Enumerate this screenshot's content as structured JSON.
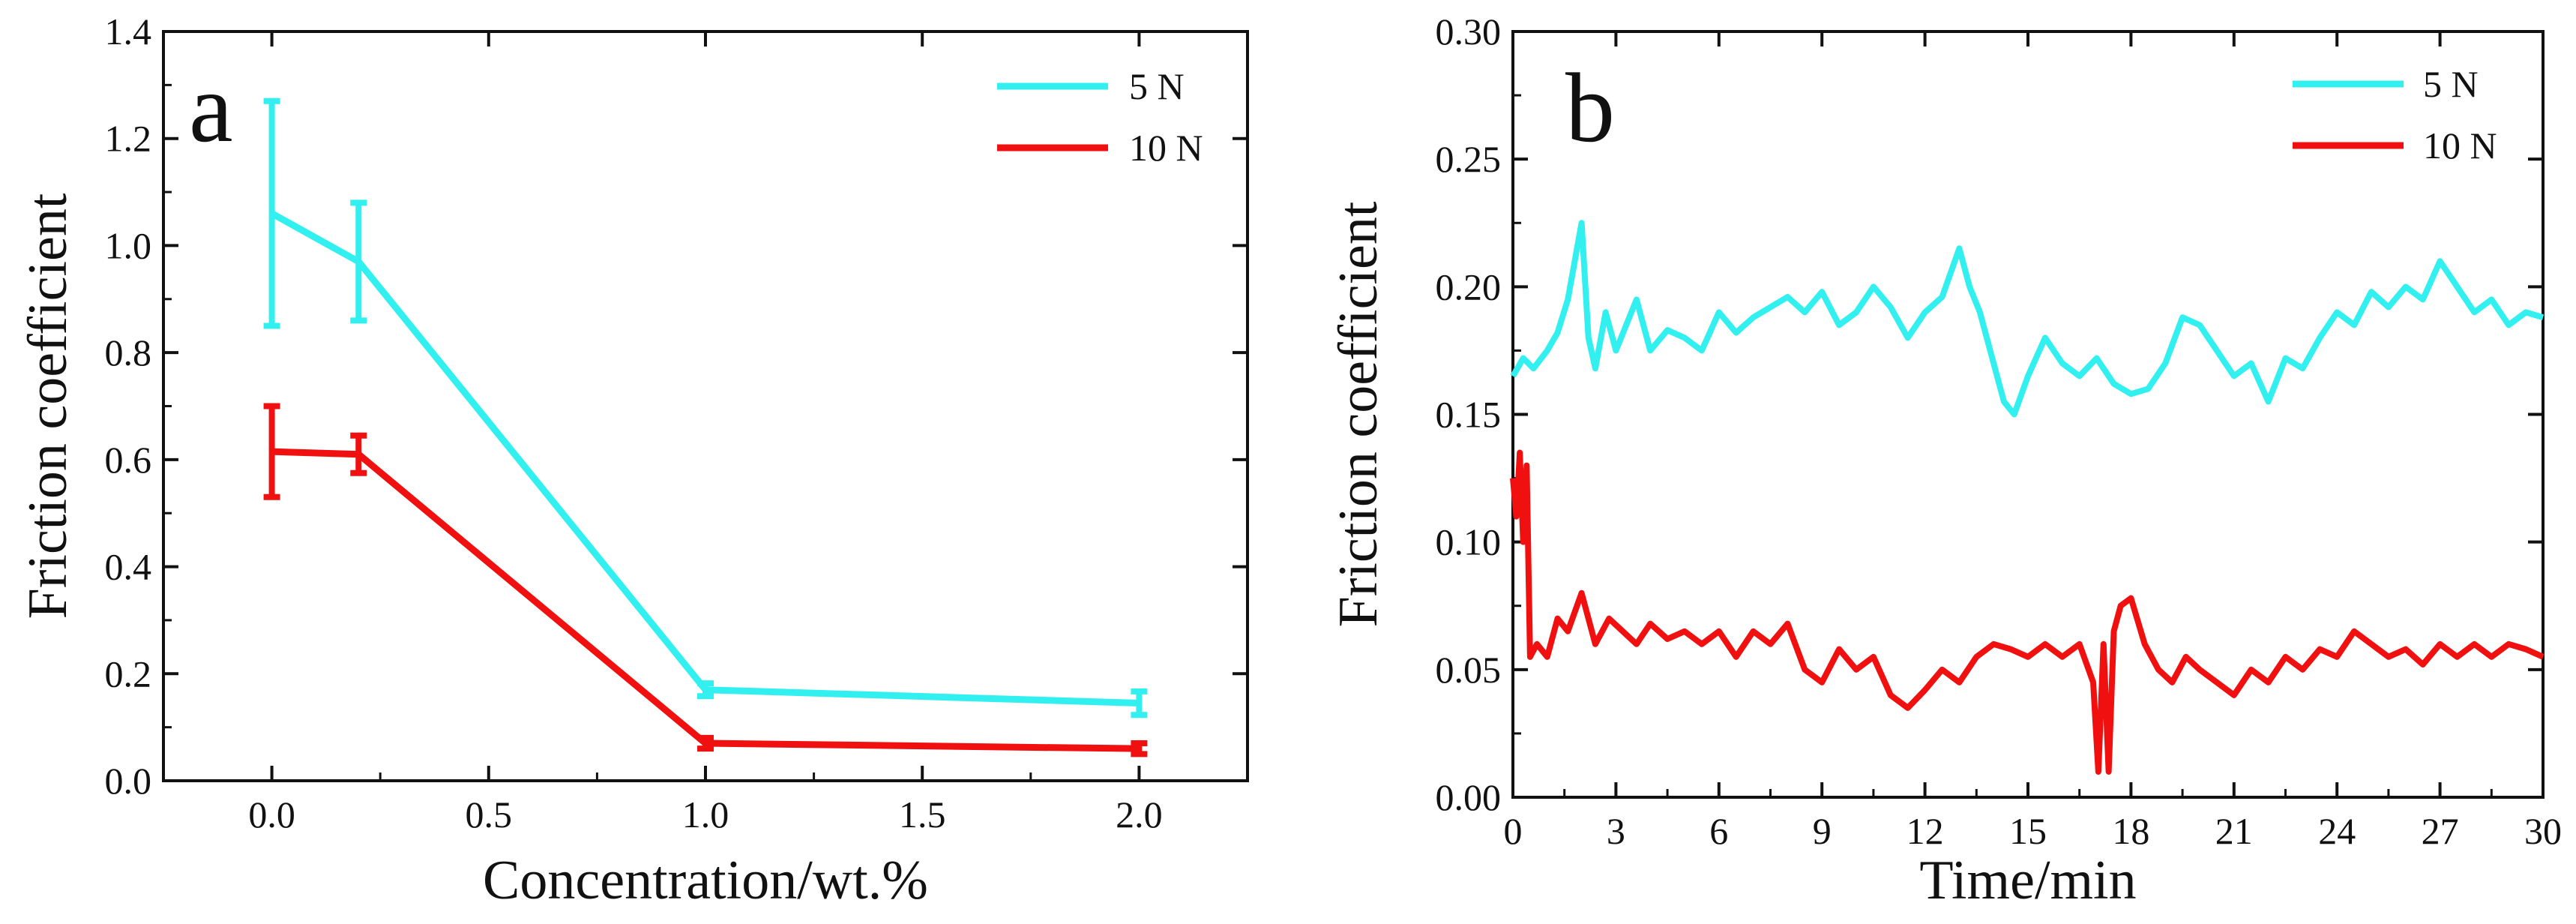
{
  "colors": {
    "s5": "#33f0f0",
    "s10": "#f01010",
    "axis": "#111111"
  },
  "chart_data": [
    {
      "type": "line",
      "panel_label": "a",
      "xlabel": "Concentration/wt.%",
      "ylabel": "Friction coefficient",
      "xlim": [
        -0.25,
        2.25
      ],
      "ylim": [
        0,
        1.4
      ],
      "xticks": [
        0.0,
        0.5,
        1.0,
        1.5,
        2.0
      ],
      "xtick_labels": [
        "0.0",
        "0.5",
        "1.0",
        "1.5",
        "2.0"
      ],
      "yticks": [
        0,
        0.2,
        0.4,
        0.6,
        0.8,
        1.0,
        1.2,
        1.4
      ],
      "ytick_labels": [
        "0.0",
        "0.2",
        "0.4",
        "0.6",
        "0.8",
        "1.0",
        "1.2",
        "1.4"
      ],
      "legend_position": "top-right",
      "series": [
        {
          "name": "5 N",
          "color": "#33f0f0",
          "x": [
            0.0,
            0.2,
            1.0,
            2.0
          ],
          "y": [
            1.06,
            0.97,
            0.17,
            0.145
          ],
          "err": [
            0.21,
            0.11,
            0.012,
            0.022
          ]
        },
        {
          "name": "10 N",
          "color": "#f01010",
          "x": [
            0.0,
            0.2,
            1.0,
            2.0
          ],
          "y": [
            0.615,
            0.61,
            0.07,
            0.06
          ],
          "err": [
            0.085,
            0.035,
            0.01,
            0.01
          ]
        }
      ]
    },
    {
      "type": "line",
      "panel_label": "b",
      "xlabel": "Time/min",
      "ylabel": "Friction coefficient",
      "xlim": [
        0,
        30
      ],
      "ylim": [
        0,
        0.3
      ],
      "xticks": [
        0,
        3,
        6,
        9,
        12,
        15,
        18,
        21,
        24,
        27,
        30
      ],
      "xtick_labels": [
        "0",
        "3",
        "6",
        "9",
        "12",
        "15",
        "18",
        "21",
        "24",
        "27",
        "30"
      ],
      "yticks": [
        0,
        0.05,
        0.1,
        0.15,
        0.2,
        0.25,
        0.3
      ],
      "ytick_labels": [
        "0.00",
        "0.05",
        "0.10",
        "0.15",
        "0.20",
        "0.25",
        "0.30"
      ],
      "legend_position": "top-right",
      "series": [
        {
          "name": "5 N",
          "color": "#33f0f0",
          "x": [
            0.0,
            0.3,
            0.6,
            1.0,
            1.3,
            1.6,
            1.8,
            2.0,
            2.2,
            2.4,
            2.7,
            3.0,
            3.3,
            3.6,
            4.0,
            4.5,
            5.0,
            5.5,
            6.0,
            6.5,
            7.0,
            7.5,
            8.0,
            8.5,
            9.0,
            9.5,
            10.0,
            10.5,
            11.0,
            11.5,
            12.0,
            12.5,
            13.0,
            13.3,
            13.6,
            14.0,
            14.3,
            14.6,
            15.0,
            15.5,
            16.0,
            16.5,
            17.0,
            17.5,
            18.0,
            18.5,
            19.0,
            19.5,
            20.0,
            20.5,
            21.0,
            21.5,
            22.0,
            22.5,
            23.0,
            23.5,
            24.0,
            24.5,
            25.0,
            25.5,
            26.0,
            26.5,
            27.0,
            27.5,
            28.0,
            28.5,
            29.0,
            29.5,
            30.0
          ],
          "y": [
            0.165,
            0.172,
            0.168,
            0.175,
            0.182,
            0.195,
            0.21,
            0.225,
            0.18,
            0.168,
            0.19,
            0.175,
            0.185,
            0.195,
            0.175,
            0.183,
            0.18,
            0.175,
            0.19,
            0.182,
            0.188,
            0.192,
            0.196,
            0.19,
            0.198,
            0.185,
            0.19,
            0.2,
            0.192,
            0.18,
            0.19,
            0.196,
            0.215,
            0.2,
            0.19,
            0.17,
            0.155,
            0.15,
            0.165,
            0.18,
            0.17,
            0.165,
            0.172,
            0.162,
            0.158,
            0.16,
            0.17,
            0.188,
            0.185,
            0.175,
            0.165,
            0.17,
            0.155,
            0.172,
            0.168,
            0.18,
            0.19,
            0.185,
            0.198,
            0.192,
            0.2,
            0.195,
            0.21,
            0.2,
            0.19,
            0.195,
            0.185,
            0.19,
            0.188
          ]
        },
        {
          "name": "10 N",
          "color": "#f01010",
          "x": [
            0.0,
            0.1,
            0.2,
            0.3,
            0.4,
            0.5,
            0.7,
            1.0,
            1.3,
            1.6,
            2.0,
            2.4,
            2.8,
            3.2,
            3.6,
            4.0,
            4.5,
            5.0,
            5.5,
            6.0,
            6.5,
            7.0,
            7.5,
            8.0,
            8.5,
            9.0,
            9.5,
            10.0,
            10.5,
            11.0,
            11.5,
            12.0,
            12.5,
            13.0,
            13.5,
            14.0,
            14.5,
            15.0,
            15.5,
            16.0,
            16.5,
            16.9,
            17.05,
            17.2,
            17.35,
            17.5,
            17.7,
            18.0,
            18.4,
            18.8,
            19.2,
            19.6,
            20.0,
            20.5,
            21.0,
            21.5,
            22.0,
            22.5,
            23.0,
            23.5,
            24.0,
            24.5,
            25.0,
            25.5,
            26.0,
            26.5,
            27.0,
            27.5,
            28.0,
            28.5,
            29.0,
            29.5,
            30.0
          ],
          "y": [
            0.125,
            0.11,
            0.135,
            0.1,
            0.13,
            0.055,
            0.06,
            0.055,
            0.07,
            0.065,
            0.08,
            0.06,
            0.07,
            0.065,
            0.06,
            0.068,
            0.062,
            0.065,
            0.06,
            0.065,
            0.055,
            0.065,
            0.06,
            0.068,
            0.05,
            0.045,
            0.058,
            0.05,
            0.055,
            0.04,
            0.035,
            0.042,
            0.05,
            0.045,
            0.055,
            0.06,
            0.058,
            0.055,
            0.06,
            0.055,
            0.06,
            0.045,
            0.01,
            0.06,
            0.01,
            0.065,
            0.075,
            0.078,
            0.06,
            0.05,
            0.045,
            0.055,
            0.05,
            0.045,
            0.04,
            0.05,
            0.045,
            0.055,
            0.05,
            0.058,
            0.055,
            0.065,
            0.06,
            0.055,
            0.058,
            0.052,
            0.06,
            0.055,
            0.06,
            0.055,
            0.06,
            0.058,
            0.055
          ]
        }
      ]
    }
  ]
}
